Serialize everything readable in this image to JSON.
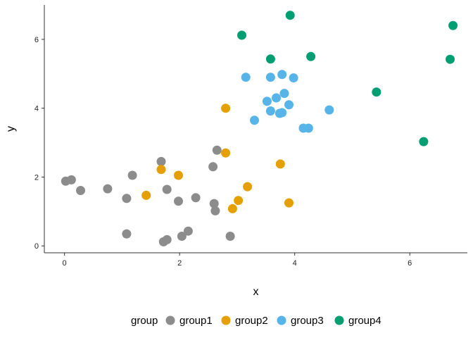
{
  "chart_data": {
    "type": "scatter",
    "title": "",
    "xlabel": "x",
    "ylabel": "y",
    "xlim": [
      -0.35,
      7.0
    ],
    "ylim": [
      -0.2,
      7.0
    ],
    "x_ticks": [
      0,
      2,
      4,
      6
    ],
    "y_ticks": [
      0,
      2,
      4,
      6
    ],
    "grid": false,
    "legend_title": "group",
    "legend_position": "bottom",
    "series": [
      {
        "name": "group1",
        "color": "#8C8C8C",
        "points": [
          [
            0.02,
            1.88
          ],
          [
            0.12,
            1.92
          ],
          [
            0.28,
            1.61
          ],
          [
            0.75,
            1.66
          ],
          [
            1.08,
            1.38
          ],
          [
            1.18,
            2.05
          ],
          [
            1.08,
            0.35
          ],
          [
            1.68,
            2.45
          ],
          [
            1.78,
            1.64
          ],
          [
            1.98,
            1.3
          ],
          [
            2.28,
            1.4
          ],
          [
            1.72,
            0.12
          ],
          [
            1.78,
            0.18
          ],
          [
            2.04,
            0.28
          ],
          [
            2.15,
            0.43
          ],
          [
            2.58,
            2.3
          ],
          [
            2.65,
            2.78
          ],
          [
            2.6,
            1.23
          ],
          [
            2.62,
            1.02
          ],
          [
            2.88,
            0.28
          ]
        ]
      },
      {
        "name": "group2",
        "color": "#E69F00",
        "points": [
          [
            1.42,
            1.47
          ],
          [
            1.68,
            2.22
          ],
          [
            1.98,
            2.05
          ],
          [
            2.8,
            4.0
          ],
          [
            2.8,
            2.7
          ],
          [
            3.18,
            1.72
          ],
          [
            3.02,
            1.32
          ],
          [
            2.92,
            1.08
          ],
          [
            3.75,
            2.38
          ],
          [
            3.9,
            1.25
          ]
        ]
      },
      {
        "name": "group3",
        "color": "#56B4E9",
        "points": [
          [
            3.15,
            4.9
          ],
          [
            3.3,
            3.65
          ],
          [
            3.52,
            4.2
          ],
          [
            3.58,
            4.9
          ],
          [
            3.58,
            3.92
          ],
          [
            3.68,
            4.3
          ],
          [
            3.74,
            3.85
          ],
          [
            3.78,
            3.87
          ],
          [
            3.78,
            4.98
          ],
          [
            3.82,
            4.43
          ],
          [
            3.9,
            4.1
          ],
          [
            3.98,
            4.88
          ],
          [
            4.15,
            3.42
          ],
          [
            4.24,
            3.42
          ],
          [
            4.6,
            3.95
          ]
        ]
      },
      {
        "name": "group4",
        "color": "#009E73",
        "points": [
          [
            3.08,
            6.12
          ],
          [
            3.58,
            5.43
          ],
          [
            3.92,
            6.7
          ],
          [
            4.28,
            5.5
          ],
          [
            5.42,
            4.47
          ],
          [
            6.24,
            3.03
          ],
          [
            6.7,
            5.42
          ],
          [
            6.75,
            6.4
          ]
        ]
      }
    ]
  }
}
